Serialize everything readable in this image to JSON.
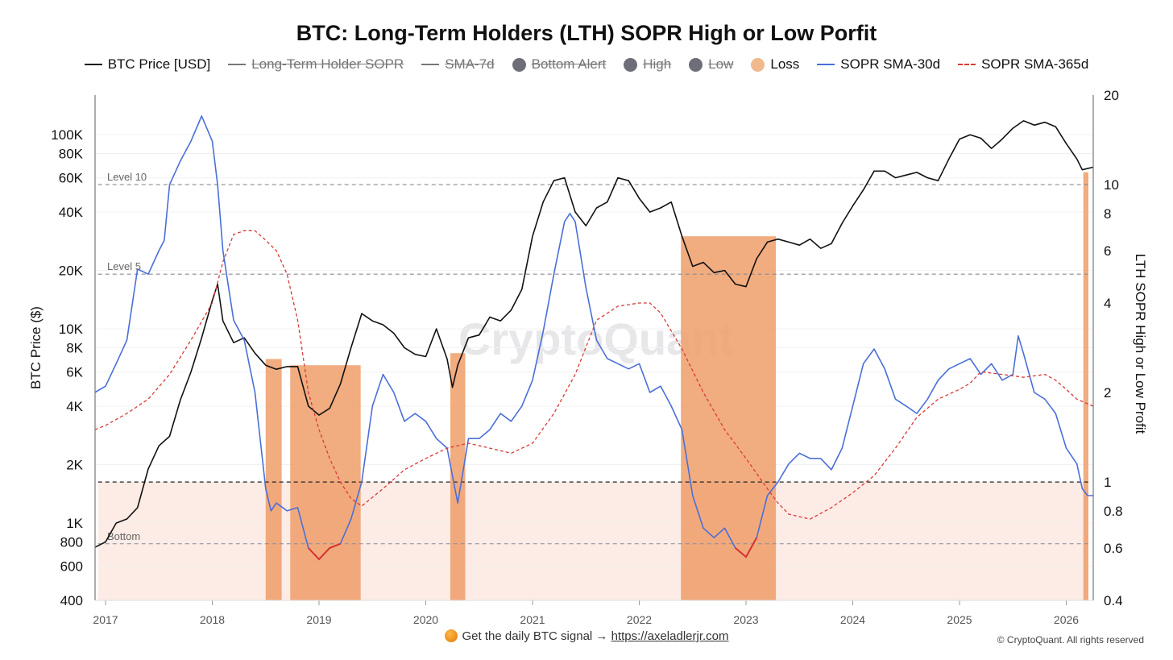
{
  "chart_data": {
    "type": "line",
    "title": "BTC: Long-Term Holders (LTH) SOPR High or Low Porfit",
    "ylabel_left": "BTC Price ($)",
    "ylabel_right": "LTH SOPR High or Low Profit",
    "x_ticks": [
      "2017",
      "2018",
      "2019",
      "2020",
      "2021",
      "2022",
      "2023",
      "2024",
      "2025",
      "2026"
    ],
    "x_range": [
      2016.9,
      2026.3
    ],
    "y_left_scale": "log",
    "y_left_range": [
      400,
      160000
    ],
    "y_left_ticks": [
      {
        "v": 100000,
        "label": "100K"
      },
      {
        "v": 80000,
        "label": "80K"
      },
      {
        "v": 60000,
        "label": "60K"
      },
      {
        "v": 40000,
        "label": "40K"
      },
      {
        "v": 20000,
        "label": "20K"
      },
      {
        "v": 10000,
        "label": "10K"
      },
      {
        "v": 8000,
        "label": "8K"
      },
      {
        "v": 6000,
        "label": "6K"
      },
      {
        "v": 4000,
        "label": "4K"
      },
      {
        "v": 2000,
        "label": "2K"
      },
      {
        "v": 1000,
        "label": "1K"
      },
      {
        "v": 800,
        "label": "800"
      },
      {
        "v": 600,
        "label": "600"
      },
      {
        "v": 400,
        "label": "400"
      }
    ],
    "y_right_scale": "log",
    "y_right_range": [
      0.4,
      20
    ],
    "y_right_ticks": [
      {
        "v": 20,
        "label": "20"
      },
      {
        "v": 10,
        "label": "10"
      },
      {
        "v": 8,
        "label": "8"
      },
      {
        "v": 6,
        "label": "6"
      },
      {
        "v": 4,
        "label": "4"
      },
      {
        "v": 2,
        "label": "2"
      },
      {
        "v": 1,
        "label": "1"
      },
      {
        "v": 0.8,
        "label": "0.8"
      },
      {
        "v": 0.6,
        "label": "0.6"
      },
      {
        "v": 0.4,
        "label": "0.4"
      }
    ],
    "levels": [
      {
        "name": "Level 10",
        "value": 10
      },
      {
        "name": "Level 5",
        "value": 5
      },
      {
        "name": "Bottom",
        "value": 0.62
      },
      {
        "name": "",
        "value": 1
      }
    ],
    "legend": [
      {
        "label": "BTC Price [USD]",
        "type": "line",
        "color": "#111111",
        "active": true
      },
      {
        "label": "Long-Term Holder SOPR",
        "type": "line",
        "color": "#777777",
        "active": false
      },
      {
        "label": "SMA-7d",
        "type": "line",
        "color": "#777777",
        "active": false
      },
      {
        "label": "Bottom Alert",
        "type": "dot",
        "color": "#6e6e78",
        "active": false
      },
      {
        "label": "High",
        "type": "dot",
        "color": "#6e6e78",
        "active": false
      },
      {
        "label": "Low",
        "type": "dot",
        "color": "#6e6e78",
        "active": false
      },
      {
        "label": "Loss",
        "type": "dot",
        "color": "#f0b98e",
        "active": true
      },
      {
        "label": "SOPR SMA-30d",
        "type": "line",
        "color": "#4a6fd8",
        "active": true
      },
      {
        "label": "SOPR SMA-365d",
        "type": "dash",
        "color": "#d83a3a",
        "active": true
      }
    ],
    "loss_periods": [
      [
        2018.5,
        2018.65
      ],
      [
        2018.73,
        2019.39
      ],
      [
        2020.23,
        2020.37
      ],
      [
        2022.39,
        2023.28
      ],
      [
        2026.16,
        2026.25
      ]
    ],
    "series": [
      {
        "name": "BTC Price [USD]",
        "axis": "left",
        "color": "#111111",
        "x": [
          2016.9,
          2017.0,
          2017.1,
          2017.2,
          2017.3,
          2017.4,
          2017.5,
          2017.6,
          2017.7,
          2017.8,
          2017.9,
          2018.0,
          2018.05,
          2018.1,
          2018.2,
          2018.3,
          2018.4,
          2018.5,
          2018.6,
          2018.7,
          2018.8,
          2018.9,
          2019.0,
          2019.1,
          2019.2,
          2019.3,
          2019.4,
          2019.5,
          2019.6,
          2019.7,
          2019.8,
          2019.9,
          2020.0,
          2020.1,
          2020.2,
          2020.25,
          2020.3,
          2020.4,
          2020.5,
          2020.6,
          2020.7,
          2020.8,
          2020.9,
          2021.0,
          2021.1,
          2021.2,
          2021.3,
          2021.4,
          2021.5,
          2021.6,
          2021.7,
          2021.8,
          2021.9,
          2022.0,
          2022.1,
          2022.2,
          2022.3,
          2022.4,
          2022.5,
          2022.6,
          2022.7,
          2022.8,
          2022.9,
          2023.0,
          2023.1,
          2023.2,
          2023.3,
          2023.4,
          2023.5,
          2023.6,
          2023.7,
          2023.8,
          2023.9,
          2024.0,
          2024.1,
          2024.2,
          2024.3,
          2024.4,
          2024.5,
          2024.6,
          2024.7,
          2024.8,
          2024.9,
          2025.0,
          2025.1,
          2025.2,
          2025.3,
          2025.4,
          2025.5,
          2025.6,
          2025.7,
          2025.8,
          2025.9,
          2026.0,
          2026.1,
          2026.15,
          2026.25
        ],
        "values": [
          750,
          800,
          1000,
          1050,
          1200,
          1900,
          2500,
          2800,
          4300,
          6000,
          9000,
          14000,
          17000,
          11000,
          8500,
          9000,
          7500,
          6500,
          6200,
          6400,
          6400,
          4000,
          3600,
          3900,
          5200,
          8000,
          12000,
          11000,
          10500,
          9500,
          8000,
          7400,
          7200,
          10000,
          7000,
          5000,
          6500,
          9000,
          9300,
          11500,
          11000,
          12500,
          16000,
          30000,
          45000,
          58000,
          60000,
          40000,
          34000,
          42000,
          45000,
          60000,
          58000,
          47000,
          40000,
          42000,
          45000,
          30000,
          21000,
          22000,
          19500,
          20000,
          17000,
          16500,
          23000,
          28000,
          29000,
          28000,
          27000,
          29000,
          26000,
          27500,
          35000,
          43000,
          52000,
          65000,
          65000,
          60000,
          62000,
          64000,
          60000,
          58000,
          75000,
          95000,
          100000,
          96000,
          85000,
          95000,
          108000,
          118000,
          112000,
          116000,
          110000,
          90000,
          75000,
          66000,
          68000
        ]
      },
      {
        "name": "SOPR SMA-30d",
        "axis": "right",
        "color": "#4a6fd8",
        "x": [
          2016.9,
          2017.0,
          2017.1,
          2017.2,
          2017.3,
          2017.4,
          2017.5,
          2017.55,
          2017.6,
          2017.7,
          2017.8,
          2017.9,
          2018.0,
          2018.05,
          2018.1,
          2018.2,
          2018.3,
          2018.4,
          2018.5,
          2018.55,
          2018.6,
          2018.7,
          2018.8,
          2018.9,
          2019.0,
          2019.1,
          2019.2,
          2019.3,
          2019.4,
          2019.5,
          2019.6,
          2019.7,
          2019.8,
          2019.9,
          2020.0,
          2020.1,
          2020.2,
          2020.25,
          2020.3,
          2020.4,
          2020.5,
          2020.6,
          2020.7,
          2020.8,
          2020.9,
          2021.0,
          2021.1,
          2021.2,
          2021.3,
          2021.35,
          2021.4,
          2021.5,
          2021.6,
          2021.7,
          2021.8,
          2021.9,
          2022.0,
          2022.1,
          2022.2,
          2022.3,
          2022.4,
          2022.5,
          2022.6,
          2022.7,
          2022.8,
          2022.9,
          2023.0,
          2023.1,
          2023.2,
          2023.3,
          2023.4,
          2023.5,
          2023.6,
          2023.7,
          2023.8,
          2023.9,
          2024.0,
          2024.1,
          2024.2,
          2024.3,
          2024.4,
          2024.5,
          2024.6,
          2024.7,
          2024.8,
          2024.9,
          2025.0,
          2025.1,
          2025.2,
          2025.3,
          2025.4,
          2025.5,
          2025.55,
          2025.6,
          2025.7,
          2025.8,
          2025.9,
          2026.0,
          2026.1,
          2026.15,
          2026.2,
          2026.25
        ],
        "values": [
          2.0,
          2.1,
          2.5,
          3.0,
          5.2,
          5.0,
          6.0,
          6.5,
          10.0,
          12.0,
          14.0,
          17.0,
          14.0,
          10.0,
          6.0,
          3.5,
          3.0,
          2.0,
          0.95,
          0.8,
          0.85,
          0.8,
          0.82,
          0.6,
          0.55,
          0.6,
          0.62,
          0.75,
          1.0,
          1.8,
          2.3,
          2.0,
          1.6,
          1.7,
          1.6,
          1.4,
          1.3,
          1.05,
          0.85,
          1.4,
          1.4,
          1.5,
          1.7,
          1.6,
          1.8,
          2.2,
          3.2,
          5.0,
          7.5,
          8.0,
          7.5,
          4.5,
          3.0,
          2.6,
          2.5,
          2.4,
          2.5,
          2.0,
          2.1,
          1.8,
          1.5,
          0.9,
          0.7,
          0.65,
          0.7,
          0.6,
          0.56,
          0.65,
          0.9,
          1.0,
          1.15,
          1.25,
          1.2,
          1.2,
          1.1,
          1.3,
          1.8,
          2.5,
          2.8,
          2.4,
          1.9,
          1.8,
          1.7,
          1.9,
          2.2,
          2.4,
          2.5,
          2.6,
          2.3,
          2.5,
          2.2,
          2.3,
          3.1,
          2.7,
          2.0,
          1.9,
          1.7,
          1.3,
          1.15,
          0.95,
          0.9,
          0.9
        ]
      },
      {
        "name": "SOPR SMA-365d",
        "axis": "right",
        "color": "#d83a3a",
        "x": [
          2016.9,
          2017.0,
          2017.2,
          2017.4,
          2017.6,
          2017.8,
          2018.0,
          2018.1,
          2018.2,
          2018.3,
          2018.4,
          2018.5,
          2018.6,
          2018.7,
          2018.8,
          2018.9,
          2019.0,
          2019.1,
          2019.2,
          2019.3,
          2019.4,
          2019.6,
          2019.8,
          2020.0,
          2020.2,
          2020.4,
          2020.6,
          2020.8,
          2021.0,
          2021.2,
          2021.4,
          2021.6,
          2021.8,
          2022.0,
          2022.1,
          2022.2,
          2022.4,
          2022.6,
          2022.8,
          2023.0,
          2023.2,
          2023.3,
          2023.4,
          2023.6,
          2023.8,
          2024.0,
          2024.2,
          2024.4,
          2024.6,
          2024.8,
          2025.0,
          2025.1,
          2025.2,
          2025.4,
          2025.6,
          2025.8,
          2025.9,
          2026.0,
          2026.1,
          2026.25
        ],
        "values": [
          1.5,
          1.55,
          1.7,
          1.9,
          2.3,
          3.0,
          4.0,
          5.5,
          6.8,
          7.0,
          7.0,
          6.5,
          6.0,
          5.0,
          3.5,
          2.0,
          1.5,
          1.2,
          1.0,
          0.88,
          0.83,
          0.95,
          1.1,
          1.2,
          1.3,
          1.35,
          1.3,
          1.25,
          1.35,
          1.7,
          2.3,
          3.5,
          3.9,
          4.0,
          4.0,
          3.7,
          2.8,
          2.0,
          1.5,
          1.2,
          0.95,
          0.85,
          0.78,
          0.75,
          0.82,
          0.92,
          1.05,
          1.3,
          1.65,
          1.9,
          2.05,
          2.15,
          2.35,
          2.3,
          2.25,
          2.3,
          2.2,
          2.05,
          1.9,
          1.8
        ]
      }
    ]
  },
  "footer": {
    "text": "Get the daily BTC signal →",
    "link": "https://axeladlerjr.com",
    "copyright": "© CryptoQuant. All rights reserved",
    "watermark": "CryptoQuant"
  }
}
